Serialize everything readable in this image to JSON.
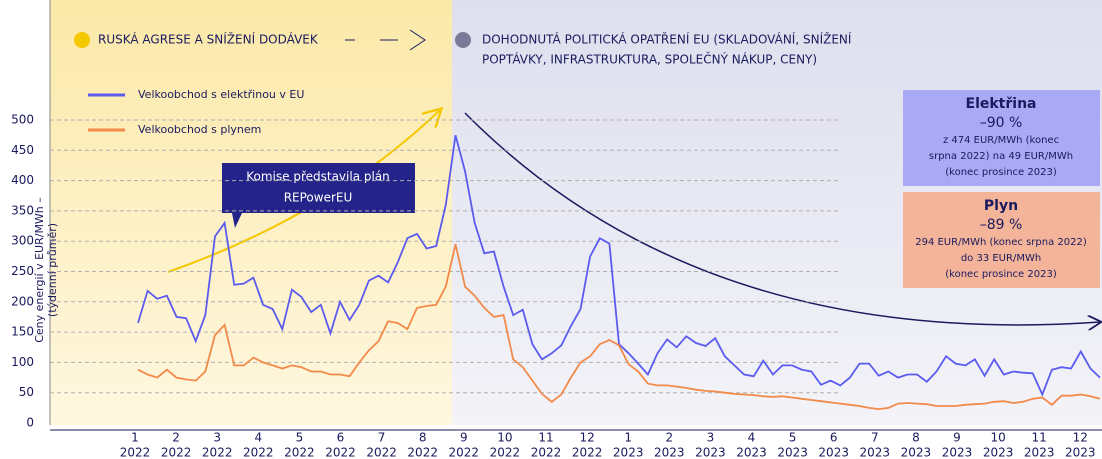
{
  "chart_data": {
    "type": "line",
    "phases": {
      "left": [
        "RUSKÁ AGRESE A SNÍŽENÍ DODÁVEK"
      ],
      "right": [
        "DOHODNUTÁ POLITICKÁ OPATŘENÍ EU (SKLADOVÁNÍ, SNÍŽENÍ",
        "POPTÁVKY, INFRASTRUKTURA, SPOLEČNÝ NÁKUP, CENY)"
      ]
    },
    "y_label": [
      "Ceny energií v EUR/MWh –",
      "(týdenní průměr)"
    ],
    "annotation": [
      "Komise představila plán",
      "REPowerEU"
    ],
    "boxes": [
      {
        "title": "Elektřina",
        "change": "–90 %",
        "lines": [
          "z 474 EUR/MWh (konec",
          "srpna 2022) na 49 EUR/MWh",
          "(konec prosince 2023)"
        ],
        "color": "#a9a9f5"
      },
      {
        "title": "Plyn",
        "change": "–89 %",
        "lines": [
          "294 EUR/MWh (konec srpna 2022)",
          "do 33 EUR/MWh",
          "(konec prosince 2023)"
        ],
        "color": "#f4b49a"
      }
    ],
    "x_labels": [
      {
        "month": "1",
        "year": "2022"
      },
      {
        "month": "2",
        "year": "2022"
      },
      {
        "month": "3",
        "year": "2022"
      },
      {
        "month": "4",
        "year": "2022"
      },
      {
        "month": "5",
        "year": "2022"
      },
      {
        "month": "6",
        "year": "2022"
      },
      {
        "month": "7",
        "year": "2022"
      },
      {
        "month": "8",
        "year": "2022"
      },
      {
        "month": "9",
        "year": "2022"
      },
      {
        "month": "10",
        "year": "2022"
      },
      {
        "month": "11",
        "year": "2022"
      },
      {
        "month": "12",
        "year": "2022"
      },
      {
        "month": "1",
        "year": "2023"
      },
      {
        "month": "2",
        "year": "2023"
      },
      {
        "month": "3",
        "year": "2023"
      },
      {
        "month": "4",
        "year": "2023"
      },
      {
        "month": "5",
        "year": "2023"
      },
      {
        "month": "6",
        "year": "2023"
      },
      {
        "month": "7",
        "year": "2023"
      },
      {
        "month": "8",
        "year": "2023"
      },
      {
        "month": "9",
        "year": "2023"
      },
      {
        "month": "10",
        "year": "2023"
      },
      {
        "month": "11",
        "year": "2023"
      },
      {
        "month": "12",
        "year": "2023"
      }
    ],
    "ylim": [
      0,
      500
    ],
    "yticks": [
      0,
      50,
      100,
      150,
      200,
      250,
      300,
      350,
      400,
      450,
      500
    ],
    "grid": true,
    "series": [
      {
        "name": "Velkoobchod s elektřinou v EU",
        "color": "#5b5bf0",
        "values": [
          165,
          218,
          205,
          210,
          175,
          173,
          135,
          178,
          308,
          330,
          228,
          230,
          240,
          195,
          188,
          155,
          220,
          208,
          183,
          195,
          148,
          200,
          170,
          195,
          235,
          243,
          232,
          265,
          305,
          312,
          288,
          292,
          360,
          475,
          415,
          330,
          280,
          283,
          225,
          178,
          187,
          130,
          105,
          115,
          128,
          160,
          188,
          275,
          305,
          296,
          130,
          115,
          98,
          80,
          115,
          138,
          125,
          143,
          132,
          127,
          140,
          110,
          95,
          80,
          77,
          103,
          80,
          95,
          95,
          88,
          85,
          63,
          70,
          62,
          75,
          98,
          98,
          78,
          85,
          75,
          80,
          80,
          68,
          85,
          110,
          98,
          95,
          105,
          78,
          105,
          80,
          85,
          83,
          82,
          47,
          88,
          92,
          90,
          118,
          90,
          75
        ]
      },
      {
        "name": "Velkoobchod s plynem",
        "color": "#f28a4a",
        "values": [
          88,
          80,
          75,
          88,
          75,
          72,
          70,
          85,
          145,
          162,
          95,
          95,
          108,
          100,
          95,
          90,
          95,
          92,
          85,
          85,
          80,
          80,
          77,
          100,
          120,
          135,
          168,
          165,
          155,
          190,
          193,
          195,
          225,
          295,
          225,
          210,
          190,
          175,
          178,
          105,
          92,
          70,
          48,
          35,
          47,
          75,
          100,
          110,
          130,
          137,
          128,
          97,
          85,
          65,
          62,
          62,
          60,
          58,
          55,
          53,
          52,
          50,
          48,
          47,
          46,
          44,
          43,
          44,
          42,
          40,
          38,
          36,
          34,
          32,
          30,
          28,
          25,
          23,
          25,
          32,
          33,
          32,
          31,
          28,
          28,
          28,
          30,
          31,
          32,
          35,
          36,
          33,
          35,
          40,
          42,
          30,
          45,
          45,
          47,
          44,
          40
        ]
      }
    ]
  }
}
